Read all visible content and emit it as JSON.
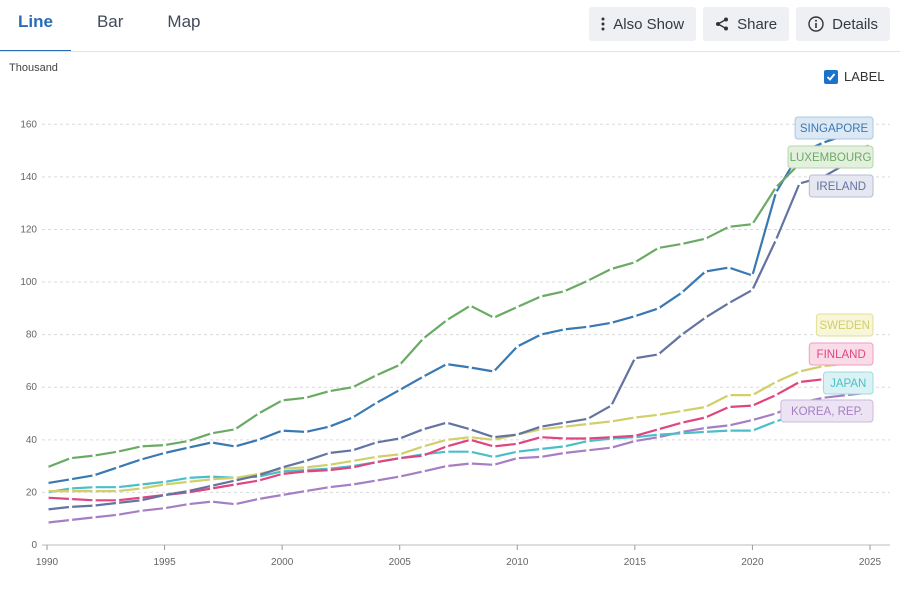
{
  "tabs": [
    {
      "label": "Line"
    },
    {
      "label": "Bar"
    },
    {
      "label": "Map"
    }
  ],
  "toolbar": {
    "also_show": "Also Show",
    "share": "Share",
    "details": "Details"
  },
  "label_toggle": {
    "label": "LABEL",
    "checked": true
  },
  "chart_data": {
    "type": "line",
    "unit_label": "Thousand",
    "xlim": [
      1990,
      2025
    ],
    "ylim": [
      0,
      170
    ],
    "x_ticks": [
      1990,
      1995,
      2000,
      2005,
      2010,
      2015,
      2020,
      2025
    ],
    "y_ticks": [
      0,
      20,
      40,
      60,
      80,
      100,
      120,
      140,
      160
    ],
    "grid": true,
    "x": [
      1990,
      1991,
      1992,
      1993,
      1994,
      1995,
      1996,
      1997,
      1998,
      1999,
      2000,
      2001,
      2002,
      2003,
      2004,
      2005,
      2006,
      2007,
      2008,
      2009,
      2010,
      2011,
      2012,
      2013,
      2014,
      2015,
      2016,
      2017,
      2018,
      2019,
      2020,
      2021,
      2022,
      2023,
      2024,
      2025
    ],
    "series": [
      {
        "name": "SINGAPORE",
        "color": "#3a78b2",
        "label_bg": "#dce9f5",
        "label_border": "#a8c6e3",
        "values": [
          23.5,
          25,
          26.5,
          29.5,
          32.5,
          35,
          37,
          39,
          37.5,
          40,
          43.5,
          43,
          45,
          48.5,
          54,
          59,
          64,
          68.8,
          67.5,
          66,
          75.5,
          80,
          82,
          83,
          84.5,
          87,
          90,
          96,
          104,
          105.5,
          102.5,
          134,
          149,
          153,
          156,
          163
        ]
      },
      {
        "name": "LUXEMBOURG",
        "color": "#6aaa64",
        "label_bg": "#e3f0de",
        "label_border": "#b5d6ab",
        "values": [
          29.5,
          33,
          34,
          35.5,
          37.5,
          38,
          39.5,
          42.5,
          44,
          50,
          55,
          56,
          58.5,
          60,
          64.5,
          68.5,
          78.5,
          85.5,
          91,
          86.5,
          90.5,
          94.5,
          96.5,
          100.5,
          105,
          107.5,
          113,
          114.5,
          116.5,
          121,
          122,
          136,
          145,
          147,
          149.5,
          152
        ]
      },
      {
        "name": "IRELAND",
        "color": "#6373a2",
        "label_bg": "#e5e7f1",
        "label_border": "#b5bcd6",
        "values": [
          13.5,
          14.5,
          15,
          16,
          17,
          19,
          20.5,
          22.5,
          24.5,
          26.5,
          29.5,
          32,
          35,
          36,
          39,
          40.5,
          44,
          46.5,
          44,
          41,
          42,
          45,
          46.5,
          48,
          53,
          71,
          72.5,
          80,
          86.5,
          92,
          97,
          116,
          137.5,
          140,
          145,
          148
        ]
      },
      {
        "name": "SWEDEN",
        "color": "#d2cf6a",
        "label_bg": "#f7f6d9",
        "label_border": "#e3df98",
        "values": [
          20.5,
          20.5,
          20.5,
          20.5,
          21.5,
          23,
          24,
          25,
          25.5,
          27,
          29,
          29.5,
          30.5,
          32,
          33.5,
          34.5,
          37.5,
          40,
          41,
          40,
          42,
          44,
          45,
          46,
          47,
          48.5,
          49.5,
          51,
          52.5,
          57,
          57,
          62,
          66,
          68,
          69,
          70
        ]
      },
      {
        "name": "FINLAND",
        "color": "#e0457f",
        "label_bg": "#fadce8",
        "label_border": "#ef9ec0",
        "values": [
          18,
          17.5,
          17,
          17,
          18,
          19,
          20,
          21.5,
          23,
          24.5,
          27,
          28,
          28.5,
          29.5,
          31.5,
          33,
          34,
          37.5,
          40,
          37.5,
          38.5,
          41,
          40.5,
          40.5,
          41,
          41.5,
          44,
          46.5,
          48.5,
          52.5,
          53,
          57,
          62,
          63,
          64,
          65
        ]
      },
      {
        "name": "JAPAN",
        "color": "#4bbfc9",
        "label_bg": "#daf2f4",
        "label_border": "#9fdbe1",
        "values": [
          20,
          21.5,
          22,
          22,
          23,
          24,
          25.5,
          26,
          25.5,
          26,
          28,
          28.5,
          29,
          30,
          31.5,
          33,
          34.5,
          35.5,
          35.5,
          33.5,
          35.5,
          36.5,
          37.5,
          39.5,
          40.5,
          41,
          42,
          42.5,
          43,
          43.5,
          43.5,
          47,
          50,
          52,
          54,
          55
        ]
      },
      {
        "name": "KOREA, REP.",
        "color": "#a57ec4",
        "label_bg": "#ece4f3",
        "label_border": "#ccb9de",
        "values": [
          8.5,
          9.5,
          10.5,
          11.5,
          13,
          14,
          15.5,
          16.5,
          15.5,
          17.5,
          19,
          20.5,
          22,
          23,
          24.5,
          26,
          28,
          30,
          31,
          30.5,
          33,
          33.5,
          35,
          36,
          37,
          39.5,
          41,
          43,
          44.5,
          45.5,
          47.5,
          50,
          54,
          56,
          57,
          58
        ]
      }
    ]
  }
}
